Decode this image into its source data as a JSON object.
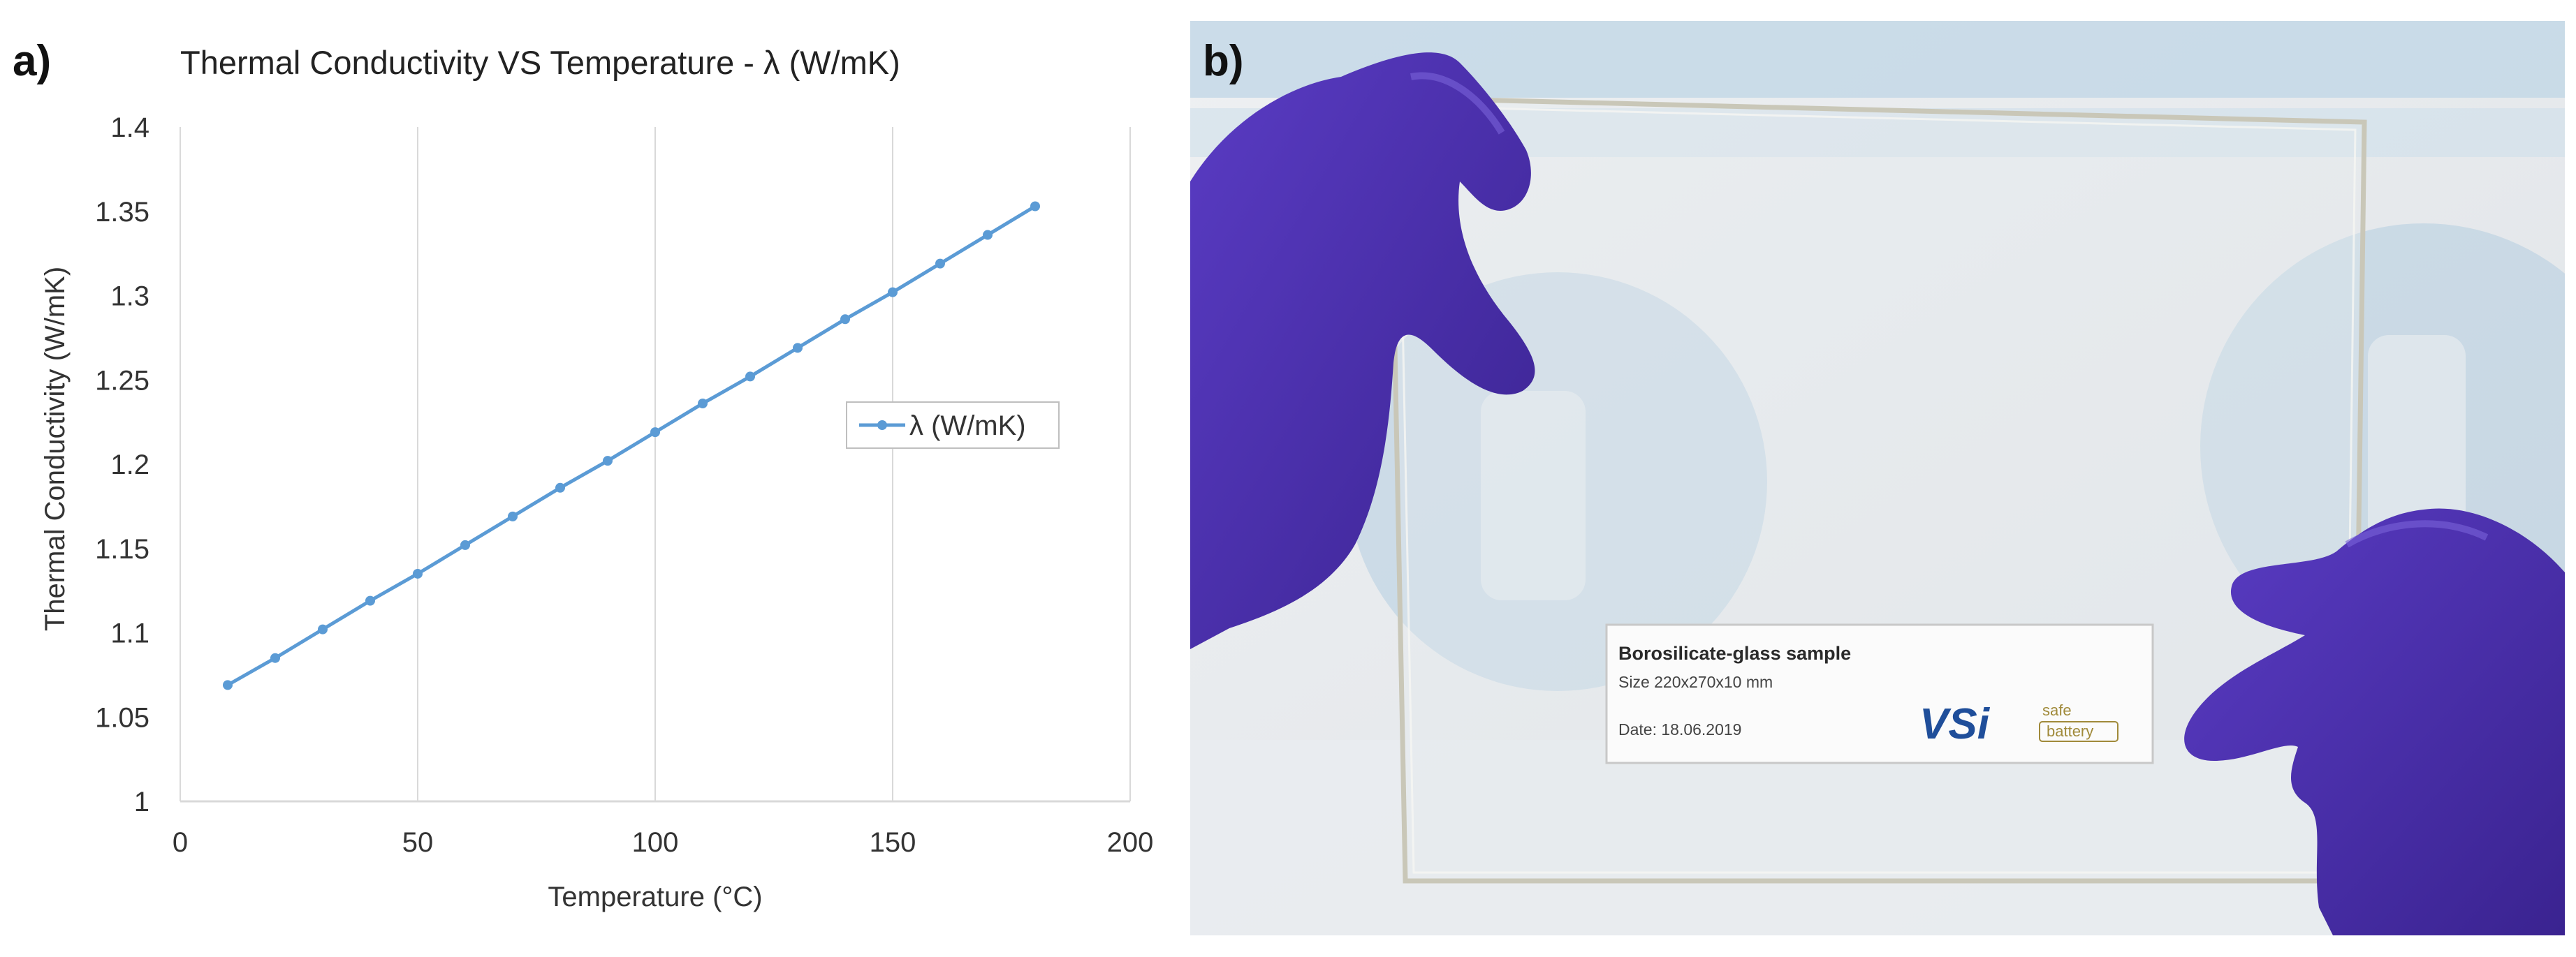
{
  "panel_a": {
    "letter": "a)",
    "chart_data": {
      "type": "line",
      "title": "Thermal Conductivity VS Temperature - λ (W/mK)",
      "xlabel": "Temperature (°C)",
      "ylabel": "Thermal Conductivity (W/mK)",
      "xlim": [
        0,
        200
      ],
      "ylim": [
        1,
        1.4
      ],
      "x_ticks": [
        "0",
        "50",
        "100",
        "150",
        "200"
      ],
      "y_ticks": [
        "1",
        "1.05",
        "1.1",
        "1.15",
        "1.2",
        "1.25",
        "1.3",
        "1.35",
        "1.4"
      ],
      "grid": "vertical",
      "legend_position": "right",
      "series": [
        {
          "name": "λ (W/mK)",
          "color": "#5b9bd5",
          "x": [
            10,
            20,
            30,
            40,
            50,
            60,
            70,
            80,
            90,
            100,
            110,
            120,
            130,
            140,
            150,
            160,
            170,
            180
          ],
          "y": [
            1.069,
            1.085,
            1.102,
            1.119,
            1.135,
            1.152,
            1.169,
            1.186,
            1.202,
            1.219,
            1.236,
            1.252,
            1.269,
            1.286,
            1.302,
            1.319,
            1.336,
            1.353
          ]
        }
      ]
    }
  },
  "panel_b": {
    "letter": "b)",
    "photo_description_icon": "borosilicate-glass-photo",
    "card": {
      "title": "Borosilicate-glass sample",
      "size": "Size 220x270x10 mm",
      "date": "Date: 18.06.2019",
      "logo_left": "VSi",
      "logo_right_top": "safe",
      "logo_right_bottom": "battery"
    },
    "colors": {
      "glove": "#4b2fb0",
      "background_sheet": "#e7eaee",
      "stripe": "#a9c8dd"
    }
  }
}
